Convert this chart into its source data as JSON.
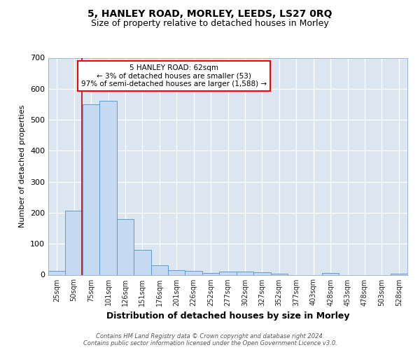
{
  "title_line1": "5, HANLEY ROAD, MORLEY, LEEDS, LS27 0RQ",
  "title_line2": "Size of property relative to detached houses in Morley",
  "xlabel": "Distribution of detached houses by size in Morley",
  "ylabel": "Number of detached properties",
  "categories": [
    "25sqm",
    "50sqm",
    "75sqm",
    "101sqm",
    "126sqm",
    "151sqm",
    "176sqm",
    "201sqm",
    "226sqm",
    "252sqm",
    "277sqm",
    "302sqm",
    "327sqm",
    "352sqm",
    "377sqm",
    "403sqm",
    "428sqm",
    "453sqm",
    "478sqm",
    "503sqm",
    "528sqm"
  ],
  "values": [
    12,
    206,
    550,
    562,
    180,
    80,
    30,
    14,
    13,
    5,
    10,
    10,
    8,
    3,
    0,
    0,
    5,
    0,
    0,
    0,
    3
  ],
  "bar_color": "#c5d9f1",
  "bar_edge_color": "#5b9bd5",
  "red_line_color": "#cc0000",
  "annotation_text": "5 HANLEY ROAD: 62sqm\n← 3% of detached houses are smaller (53)\n97% of semi-detached houses are larger (1,588) →",
  "annotation_box_color": "white",
  "annotation_box_edge_color": "red",
  "ylim": [
    0,
    700
  ],
  "yticks": [
    0,
    100,
    200,
    300,
    400,
    500,
    600,
    700
  ],
  "background_color": "#dce6f1",
  "grid_color": "white",
  "footer": "Contains HM Land Registry data © Crown copyright and database right 2024.\nContains public sector information licensed under the Open Government Licence v3.0.",
  "title1_fontsize": 10,
  "title2_fontsize": 9,
  "xlabel_fontsize": 9,
  "ylabel_fontsize": 8,
  "tick_fontsize": 7,
  "annotation_fontsize": 7.5,
  "footer_fontsize": 6
}
